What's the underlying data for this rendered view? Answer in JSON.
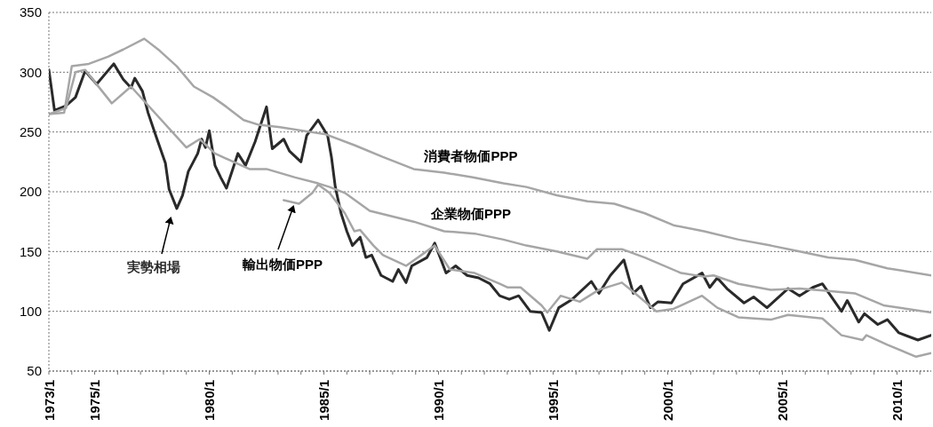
{
  "chart_data": {
    "type": "line",
    "xlim": [
      "1973-01",
      "2011-07"
    ],
    "ylim": [
      50,
      350
    ],
    "yticks": [
      50,
      100,
      150,
      200,
      250,
      300,
      350
    ],
    "xticks": [
      {
        "value": "1973-01",
        "label": "1973/1"
      },
      {
        "value": "1974-01",
        "label": null
      },
      {
        "value": "1975-01",
        "label": "1975/1"
      },
      {
        "value": "1976-01",
        "label": null
      },
      {
        "value": "1977-01",
        "label": null
      },
      {
        "value": "1978-01",
        "label": null
      },
      {
        "value": "1979-01",
        "label": null
      },
      {
        "value": "1980-01",
        "label": "1980/1"
      },
      {
        "value": "1981-01",
        "label": null
      },
      {
        "value": "1982-01",
        "label": null
      },
      {
        "value": "1983-01",
        "label": null
      },
      {
        "value": "1984-01",
        "label": null
      },
      {
        "value": "1985-01",
        "label": "1985/1"
      },
      {
        "value": "1986-01",
        "label": null
      },
      {
        "value": "1987-01",
        "label": null
      },
      {
        "value": "1988-01",
        "label": null
      },
      {
        "value": "1989-01",
        "label": null
      },
      {
        "value": "1990-01",
        "label": "1990/1"
      },
      {
        "value": "1991-01",
        "label": null
      },
      {
        "value": "1992-01",
        "label": null
      },
      {
        "value": "1993-01",
        "label": null
      },
      {
        "value": "1994-01",
        "label": null
      },
      {
        "value": "1995-01",
        "label": "1995/1"
      },
      {
        "value": "1996-01",
        "label": null
      },
      {
        "value": "1997-01",
        "label": null
      },
      {
        "value": "1998-01",
        "label": null
      },
      {
        "value": "1999-01",
        "label": null
      },
      {
        "value": "2000-01",
        "label": "2000/1"
      },
      {
        "value": "2001-01",
        "label": null
      },
      {
        "value": "2002-01",
        "label": null
      },
      {
        "value": "2003-01",
        "label": null
      },
      {
        "value": "2004-01",
        "label": null
      },
      {
        "value": "2005-01",
        "label": "2005/1"
      },
      {
        "value": "2006-01",
        "label": null
      },
      {
        "value": "2007-01",
        "label": null
      },
      {
        "value": "2008-01",
        "label": null
      },
      {
        "value": "2009-01",
        "label": null
      },
      {
        "value": "2010-01",
        "label": "2010/1"
      },
      {
        "value": "2011-01",
        "label": null
      }
    ],
    "grid": "y",
    "legend": false,
    "marker": "none",
    "line_style": "solid",
    "series": [
      {
        "name": "実勢相場",
        "color": "#2a2a2a",
        "x": [
          "1973-01",
          "1973-04",
          "1973-10",
          "1974-03",
          "1974-08",
          "1975-02",
          "1975-11",
          "1976-04",
          "1976-08",
          "1976-10",
          "1977-02",
          "1977-05",
          "1977-09",
          "1978-02",
          "1978-04",
          "1978-08",
          "1978-11",
          "1979-02",
          "1979-07",
          "1979-09",
          "1979-11",
          "1980-01",
          "1980-04",
          "1980-07",
          "1980-10",
          "1981-04",
          "1981-08",
          "1982-01",
          "1982-07",
          "1982-10",
          "1983-04",
          "1983-07",
          "1984-01",
          "1984-04",
          "1984-10",
          "1985-03",
          "1985-05",
          "1985-07",
          "1985-10",
          "1986-01",
          "1986-04",
          "1986-08",
          "1986-11",
          "1987-02",
          "1987-07",
          "1988-01",
          "1988-04",
          "1988-08",
          "1988-11",
          "1989-07",
          "1989-11",
          "1990-05",
          "1990-10",
          "1991-04",
          "1991-10",
          "1992-04",
          "1992-09",
          "1993-02",
          "1993-07",
          "1994-01",
          "1994-07",
          "1994-11",
          "1995-04",
          "1995-11",
          "1996-09",
          "1997-01",
          "1997-07",
          "1998-02",
          "1998-07",
          "1998-11",
          "1999-04",
          "1999-08",
          "2000-03",
          "2000-09",
          "2001-07",
          "2001-11",
          "2002-03",
          "2002-08",
          "2003-05",
          "2003-10",
          "2004-05",
          "2005-04",
          "2005-10",
          "2006-05",
          "2006-10",
          "2007-08",
          "2007-11",
          "2008-05",
          "2008-08",
          "2009-03",
          "2009-08",
          "2010-02",
          "2010-12",
          "2011-07"
        ],
        "values": [
          302,
          268,
          272,
          279,
          301,
          290,
          307,
          294,
          287,
          295,
          284,
          266,
          247,
          224,
          202,
          186,
          197,
          217,
          232,
          244,
          237,
          251,
          222,
          212,
          203,
          232,
          222,
          242,
          271,
          236,
          244,
          234,
          225,
          247,
          260,
          247,
          229,
          204,
          182,
          167,
          155,
          162,
          145,
          147,
          130,
          125,
          135,
          124,
          138,
          145,
          157,
          132,
          138,
          130,
          128,
          123,
          113,
          110,
          113,
          100,
          99,
          84,
          103,
          110,
          125,
          115,
          130,
          143,
          115,
          121,
          103,
          108,
          107,
          123,
          132,
          120,
          128,
          119,
          107,
          112,
          103,
          119,
          113,
          120,
          123,
          100,
          109,
          91,
          98,
          89,
          93,
          82,
          76,
          80
        ]
      },
      {
        "name": "消費者物価PPP",
        "color": "#a6a6a6",
        "x": [
          "1973-01",
          "1973-09",
          "1974-01",
          "1974-10",
          "1975-08",
          "1976-04",
          "1977-03",
          "1977-11",
          "1978-08",
          "1979-05",
          "1980-03",
          "1980-10",
          "1981-07",
          "1982-03",
          "1983-02",
          "1985-02",
          "1986-05",
          "1987-08",
          "1988-12",
          "1990-04",
          "1991-07",
          "1992-11",
          "1993-11",
          "1995-03",
          "1996-07",
          "1997-09",
          "1999-01",
          "2000-04",
          "2001-08",
          "2003-02",
          "2004-07",
          "2005-10",
          "2007-01",
          "2008-03",
          "2009-08",
          "2011-07"
        ],
        "values": [
          265,
          266,
          305,
          307,
          313,
          319,
          328,
          318,
          305,
          288,
          279,
          271,
          260,
          256,
          254,
          248,
          239,
          229,
          219,
          216,
          212,
          207,
          204,
          197,
          192,
          190,
          182,
          172,
          167,
          160,
          155,
          150,
          145,
          143,
          136,
          130
        ]
      },
      {
        "name": "企業物価PPP",
        "color": "#a6a6a6",
        "x": [
          "1973-01",
          "1973-10",
          "1974-03",
          "1974-08",
          "1975-10",
          "1976-08",
          "1979-01",
          "1979-08",
          "1980-04",
          "1981-10",
          "1982-07",
          "1983-10",
          "1984-10",
          "1985-04",
          "1985-12",
          "1987-01",
          "1988-12",
          "1990-04",
          "1991-08",
          "1992-11",
          "1993-11",
          "1995-03",
          "1996-07",
          "1996-12",
          "1998-01",
          "1999-01",
          "2000-08",
          "2001-08",
          "2002-01",
          "2003-02",
          "2004-07",
          "2005-10",
          "2007-01",
          "2008-03",
          "2009-06",
          "2011-07"
        ],
        "values": [
          265,
          270,
          300,
          302,
          274,
          288,
          237,
          244,
          232,
          219,
          219,
          212,
          207,
          204,
          199,
          184,
          175,
          167,
          165,
          160,
          155,
          150,
          144,
          152,
          152,
          145,
          132,
          129,
          130,
          123,
          118,
          119,
          117,
          115,
          105,
          99
        ]
      },
      {
        "name": "輸出物価PPP",
        "color": "#a6a6a6",
        "x": [
          "1983-04",
          "1983-12",
          "1984-07",
          "1984-10",
          "1985-04",
          "1985-12",
          "1986-05",
          "1986-08",
          "1987-03",
          "1987-08",
          "1988-08",
          "1989-04",
          "1989-11",
          "1990-07",
          "1991-08",
          "1992-09",
          "1993-01",
          "1993-08",
          "1994-07",
          "1994-10",
          "1995-05",
          "1996-03",
          "1997-01",
          "1998-01",
          "1998-08",
          "1999-07",
          "2000-04",
          "2001-07",
          "2002-03",
          "2003-02",
          "2004-07",
          "2005-04",
          "2006-10",
          "2007-08",
          "2008-07",
          "2008-09",
          "2009-08",
          "2010-11",
          "2011-07"
        ],
        "values": [
          193,
          190,
          199,
          206,
          199,
          182,
          167,
          168,
          155,
          147,
          138,
          147,
          155,
          135,
          132,
          123,
          120,
          120,
          105,
          99,
          113,
          108,
          118,
          124,
          115,
          100,
          102,
          113,
          103,
          95,
          93,
          97,
          94,
          80,
          76,
          80,
          72,
          62,
          65
        ]
      }
    ]
  }
}
